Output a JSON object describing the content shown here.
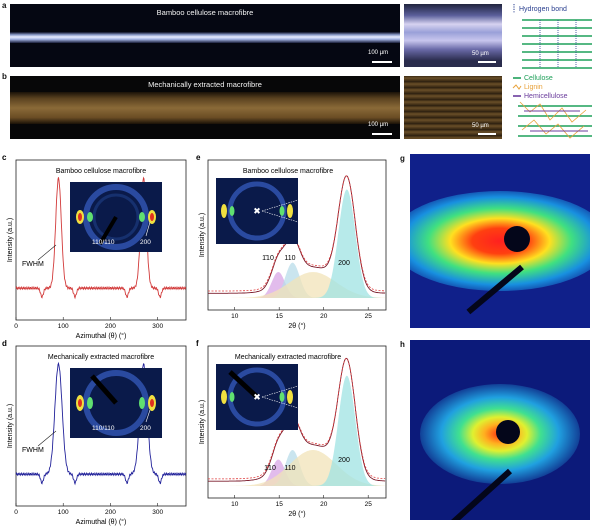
{
  "panels": {
    "a": {
      "letter": "a",
      "title": "Bamboo cellulose macrofibre",
      "scale_main": "100 µm",
      "scale_zoom": "50 µm"
    },
    "b": {
      "letter": "b",
      "title": "Mechanically extracted macrofibre",
      "scale_main": "100 µm",
      "scale_zoom": "50 µm"
    },
    "c": {
      "letter": "c",
      "title": "Bamboo cellulose macrofibre",
      "ylabel": "Intensity (a.u.)",
      "xlabel": "Azimuthal (θ) (°)",
      "ticks": [
        "0",
        "100",
        "200",
        "300"
      ],
      "fwhm": "FWHM",
      "inset_110": "110/110",
      "inset_200": "200"
    },
    "d": {
      "letter": "d",
      "title": "Mechanically extracted macrofibre",
      "ylabel": "Intensity (a.u.)",
      "xlabel": "Azimuthal (θ) (°)",
      "ticks": [
        "0",
        "100",
        "200",
        "300"
      ],
      "fwhm": "FWHM",
      "inset_110": "110/110",
      "inset_200": "200"
    },
    "e": {
      "letter": "e",
      "title": "Bamboo cellulose macrofibre",
      "ylabel": "Intensity (a.u.)",
      "xlabel": "2θ (°)",
      "ticks": [
        "10",
        "15",
        "20",
        "25"
      ],
      "peak_110bar": "1̄10",
      "peak_110": "110",
      "peak_200": "200"
    },
    "f": {
      "letter": "f",
      "title": "Mechanically extracted macrofibre",
      "ylabel": "Intensity (a.u.)",
      "xlabel": "2θ (°)",
      "ticks": [
        "10",
        "15",
        "20",
        "25"
      ],
      "peak_110bar": "1̄10",
      "peak_110": "110",
      "peak_200": "200"
    },
    "g": {
      "letter": "g"
    },
    "h": {
      "letter": "h"
    }
  },
  "legend": {
    "top": [
      {
        "label": "Hydrogen bond",
        "color": "#2a3f8f"
      }
    ],
    "bottom": [
      {
        "label": "Cellulose",
        "color": "#1fa05a"
      },
      {
        "label": "Lignin",
        "color": "#e8a23a"
      },
      {
        "label": "Hemicellulose",
        "color": "#6a3c9c"
      }
    ]
  },
  "colors": {
    "c_line": "#d23a3a",
    "d_line": "#22229a",
    "fit_line": "#7a1a2a",
    "fit_dash": "#e04040",
    "peak_200_fill": "#9fe3e3",
    "peak_110bar_fill": "#d8a6e6",
    "peak_110_fill": "#b8dcea",
    "amorphous_fill": "#f2e3b8"
  },
  "chart_data": [
    {
      "panel": "c",
      "type": "line",
      "xlabel": "Azimuthal (θ) (°)",
      "ylabel": "Intensity (a.u.)",
      "xlim": [
        0,
        360
      ],
      "peaks": [
        {
          "x": 90,
          "fwhm": 14
        },
        {
          "x": 270,
          "fwhm": 14
        }
      ]
    },
    {
      "panel": "d",
      "type": "line",
      "xlabel": "Azimuthal (θ) (°)",
      "ylabel": "Intensity (a.u.)",
      "xlim": [
        0,
        360
      ],
      "peaks": [
        {
          "x": 90,
          "fwhm": 18
        },
        {
          "x": 270,
          "fwhm": 18
        }
      ]
    },
    {
      "panel": "e",
      "type": "area",
      "xlabel": "2θ (°)",
      "ylabel": "Intensity (a.u.)",
      "xlim": [
        7,
        27
      ],
      "peaks": [
        {
          "name": "1̄10",
          "x": 14.9
        },
        {
          "name": "110",
          "x": 16.5
        },
        {
          "name": "200",
          "x": 22.6
        }
      ]
    },
    {
      "panel": "f",
      "type": "area",
      "xlabel": "2θ (°)",
      "ylabel": "Intensity (a.u.)",
      "xlim": [
        7,
        27
      ],
      "peaks": [
        {
          "name": "1̄10",
          "x": 14.9
        },
        {
          "name": "110",
          "x": 16.5
        },
        {
          "name": "200",
          "x": 22.6
        }
      ]
    }
  ]
}
